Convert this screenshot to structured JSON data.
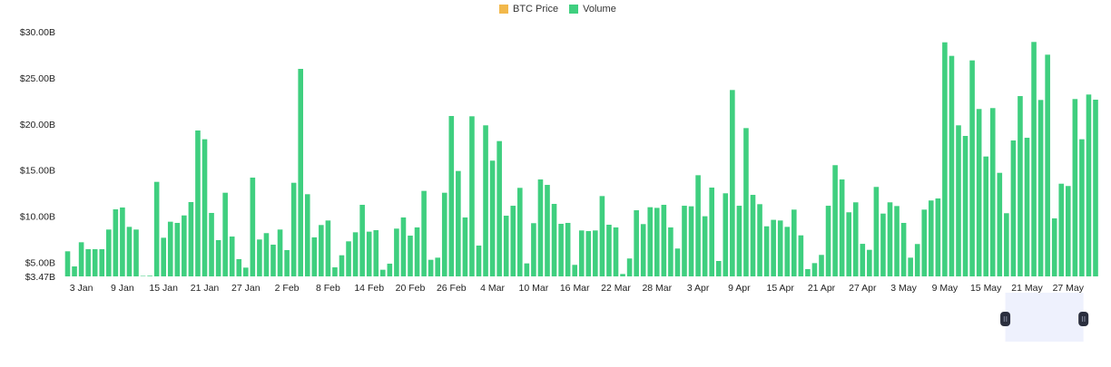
{
  "legend": [
    {
      "label": "BTC Price",
      "color": "#f2b84b"
    },
    {
      "label": "Volume",
      "color": "#3fcf7f"
    }
  ],
  "chart_data": {
    "type": "bar",
    "title": "",
    "xlabel": "",
    "ylabel": "",
    "series": [
      {
        "name": "BTC Price",
        "values": []
      },
      {
        "name": "Volume",
        "unit": "USD billions",
        "values": [
          6.19,
          4.55,
          7.17,
          6.42,
          6.42,
          6.42,
          8.55,
          10.74,
          10.94,
          8.84,
          8.55,
          3.5,
          3.54,
          13.72,
          7.66,
          9.4,
          9.27,
          10.08,
          11.53,
          19.29,
          18.34,
          10.35,
          7.4,
          12.54,
          7.79,
          5.34,
          4.42,
          14.18,
          7.47,
          8.16,
          6.91,
          8.55,
          6.32,
          13.62,
          25.97,
          12.38,
          7.7,
          9.04,
          9.53,
          4.45,
          5.76,
          7.27,
          8.25,
          11.23,
          8.32,
          8.48,
          4.19,
          4.85,
          8.65,
          9.86,
          7.89,
          8.78,
          12.74,
          5.27,
          5.5,
          12.54,
          20.86,
          14.9,
          9.86,
          20.83,
          6.81,
          19.85,
          16.02,
          18.14,
          10.05,
          11.13,
          13.07,
          4.88,
          9.24,
          13.98,
          13.39,
          11.33,
          9.17,
          9.27,
          4.72,
          8.45,
          8.38,
          8.45,
          12.18,
          9.07,
          8.78,
          3.73,
          5.41,
          10.64,
          9.14,
          10.97,
          10.9,
          11.23,
          8.78,
          6.49,
          11.13,
          11.07,
          14.44,
          9.99,
          13.1,
          5.14,
          12.48,
          23.68,
          11.13,
          19.55,
          12.31,
          11.3,
          8.9,
          9.6,
          9.53,
          8.84,
          10.71,
          7.92,
          4.26,
          4.91,
          5.8,
          11.13,
          15.53,
          13.98,
          10.42,
          11.5,
          7.0,
          6.35,
          13.17,
          10.28,
          11.5,
          11.1,
          9.27,
          5.5,
          6.98,
          10.71,
          11.7,
          11.92,
          28.85,
          27.38,
          19.85,
          18.7,
          26.89,
          21.62,
          16.47,
          21.72,
          14.7,
          10.32,
          18.21,
          23.02,
          18.5,
          28.89,
          22.6,
          27.51,
          9.76,
          13.52,
          13.27,
          22.7,
          18.34,
          23.19,
          22.63
        ]
      }
    ],
    "x_ticks": [
      {
        "index": 2,
        "label": "3 Jan"
      },
      {
        "index": 8,
        "label": "9 Jan"
      },
      {
        "index": 14,
        "label": "15 Jan"
      },
      {
        "index": 20,
        "label": "21 Jan"
      },
      {
        "index": 26,
        "label": "27 Jan"
      },
      {
        "index": 32,
        "label": "2 Feb"
      },
      {
        "index": 38,
        "label": "8 Feb"
      },
      {
        "index": 44,
        "label": "14 Feb"
      },
      {
        "index": 50,
        "label": "20 Feb"
      },
      {
        "index": 56,
        "label": "26 Feb"
      },
      {
        "index": 62,
        "label": "4 Mar"
      },
      {
        "index": 68,
        "label": "10 Mar"
      },
      {
        "index": 74,
        "label": "16 Mar"
      },
      {
        "index": 80,
        "label": "22 Mar"
      },
      {
        "index": 86,
        "label": "28 Mar"
      },
      {
        "index": 92,
        "label": "3 Apr"
      },
      {
        "index": 98,
        "label": "9 Apr"
      },
      {
        "index": 104,
        "label": "15 Apr"
      },
      {
        "index": 110,
        "label": "21 Apr"
      },
      {
        "index": 116,
        "label": "27 Apr"
      },
      {
        "index": 122,
        "label": "3 May"
      },
      {
        "index": 128,
        "label": "9 May"
      },
      {
        "index": 134,
        "label": "15 May"
      },
      {
        "index": 140,
        "label": "21 May"
      },
      {
        "index": 146,
        "label": "27 May"
      }
    ],
    "y_ticks": [
      {
        "value": 3.47,
        "label": "$3.47B"
      },
      {
        "value": 5,
        "label": "$5.00B"
      },
      {
        "value": 10,
        "label": "$10.00B"
      },
      {
        "value": 15,
        "label": "$15.00B"
      },
      {
        "value": 20,
        "label": "$20.00B"
      },
      {
        "value": 25,
        "label": "$25.00B"
      },
      {
        "value": 30,
        "label": "$30.00B"
      }
    ],
    "ylim": [
      3.47,
      30
    ],
    "grid": false,
    "legend_position": "top-center",
    "zoom_range": {
      "start_fraction": 0.914,
      "end_fraction": 0.99
    }
  }
}
